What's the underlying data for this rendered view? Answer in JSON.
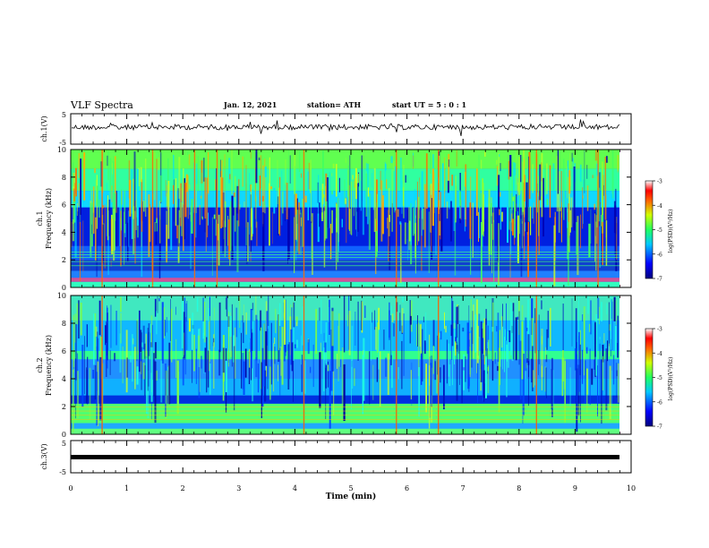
{
  "header": {
    "title": "VLF Spectra",
    "date": "Jan. 12, 2021",
    "station": "station= ATH",
    "start": "start  UT =  5 : 0 : 1"
  },
  "chart_data": [
    {
      "type": "line",
      "title": "",
      "ylabel": "ch.1(V)",
      "ylim": [
        -5,
        5
      ],
      "yticks": [
        "5",
        "-5"
      ],
      "xlim": [
        0,
        10
      ]
    },
    {
      "type": "heatmap",
      "ylabel_line1": "ch.1",
      "ylabel_line2": "Frequency (kHz)",
      "ylim": [
        0,
        10
      ],
      "yticks": [
        "0",
        "2",
        "4",
        "6",
        "8",
        "10"
      ],
      "xlim": [
        0,
        10
      ],
      "colorbar": {
        "label": "log(PSD)(V²/Hz)",
        "ticks": [
          "-3",
          "-4",
          "-5",
          "-6",
          "-7"
        ],
        "range": [
          -7,
          -3
        ]
      }
    },
    {
      "type": "heatmap",
      "ylabel_line1": "ch.2",
      "ylabel_line2": "Frequency (kHz)",
      "ylim": [
        0,
        10
      ],
      "yticks": [
        "0",
        "2",
        "4",
        "6",
        "8",
        "10"
      ],
      "xlim": [
        0,
        10
      ],
      "colorbar": {
        "label": "log(PSD)(V²/Hz)",
        "ticks": [
          "-3",
          "-4",
          "-5",
          "-6",
          "-7"
        ],
        "range": [
          -7,
          -3
        ]
      }
    },
    {
      "type": "line",
      "ylabel": "ch.3(V)",
      "ylim": [
        -5,
        5
      ],
      "yticks": [
        "5",
        "-5"
      ],
      "xlim": [
        0,
        10
      ],
      "xlabel": "Time (min)",
      "xticks": [
        "0",
        "1",
        "2",
        "3",
        "4",
        "5",
        "6",
        "7",
        "8",
        "9",
        "10"
      ]
    }
  ]
}
